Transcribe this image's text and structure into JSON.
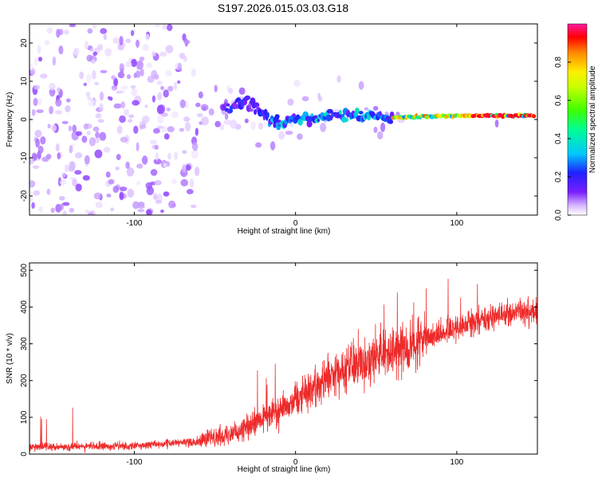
{
  "title": "S197.2026.015.03.03.G18",
  "colors": {
    "snr_line": "#ee2a2a",
    "colormap": [
      "#ffffff",
      "#d8b8ff",
      "#7a1fff",
      "#2020ff",
      "#00c8ff",
      "#00ff60",
      "#b8ff00",
      "#ffee00",
      "#ff8800",
      "#ff0000",
      "#ff1aa0"
    ]
  },
  "chart_data": [
    {
      "type": "heatmap",
      "name": "spectrogram",
      "xlabel": "Height of straight line (km)",
      "ylabel": "Frequency (Hz)",
      "xlim": [
        -165,
        150
      ],
      "ylim": [
        -25,
        25
      ],
      "x_ticks": [
        -100,
        0,
        100
      ],
      "y_ticks": [
        -20,
        -10,
        0,
        10,
        20
      ],
      "description_series": {
        "name": "dominant frequency ridge",
        "x": [
          -40,
          -30,
          -20,
          -10,
          0,
          20,
          40,
          60,
          80,
          100,
          120,
          145
        ],
        "y": [
          3,
          5,
          1,
          -1,
          0,
          1,
          1,
          0.5,
          0.8,
          1.0,
          1.0,
          1.0
        ]
      },
      "colorbar": {
        "label": "Normalized spectral amplitude",
        "range": [
          0,
          1
        ],
        "ticks": [
          "0.0",
          "0.2",
          "0.4",
          "0.6",
          "0.8"
        ]
      }
    },
    {
      "type": "line",
      "name": "snr",
      "xlabel": "Height of straight line (km)",
      "ylabel": "SNR (10 * v/v)",
      "xlim": [
        -165,
        150
      ],
      "ylim": [
        0,
        520
      ],
      "x_ticks": [
        -100,
        0,
        100
      ],
      "y_ticks": [
        0,
        100,
        200,
        300,
        400,
        500
      ],
      "trend": {
        "x": [
          -165,
          -100,
          -60,
          -30,
          -10,
          10,
          30,
          50,
          70,
          90,
          110,
          130,
          150
        ],
        "y": [
          20,
          22,
          35,
          70,
          120,
          180,
          230,
          265,
          290,
          330,
          360,
          380,
          390
        ]
      }
    }
  ]
}
